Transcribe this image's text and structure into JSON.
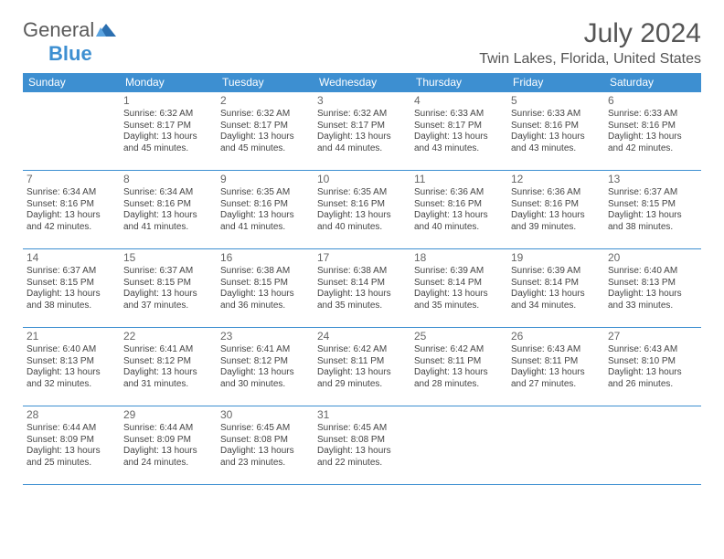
{
  "brand": {
    "part1": "General",
    "part2": "Blue"
  },
  "title": "July 2024",
  "location": "Twin Lakes, Florida, United States",
  "colors": {
    "accent": "#3d8fd1",
    "text": "#444",
    "header_text": "#ffffff",
    "bg": "#ffffff"
  },
  "typography": {
    "title_fontsize": 30,
    "location_fontsize": 16,
    "header_fontsize": 12,
    "cell_fontsize": 10
  },
  "table": {
    "columns": 7,
    "rows": 5
  },
  "weekdays": [
    "Sunday",
    "Monday",
    "Tuesday",
    "Wednesday",
    "Thursday",
    "Friday",
    "Saturday"
  ],
  "days": [
    {
      "n": "",
      "sunrise": "",
      "sunset": "",
      "daylight": ""
    },
    {
      "n": "1",
      "sunrise": "Sunrise: 6:32 AM",
      "sunset": "Sunset: 8:17 PM",
      "daylight": "Daylight: 13 hours and 45 minutes."
    },
    {
      "n": "2",
      "sunrise": "Sunrise: 6:32 AM",
      "sunset": "Sunset: 8:17 PM",
      "daylight": "Daylight: 13 hours and 45 minutes."
    },
    {
      "n": "3",
      "sunrise": "Sunrise: 6:32 AM",
      "sunset": "Sunset: 8:17 PM",
      "daylight": "Daylight: 13 hours and 44 minutes."
    },
    {
      "n": "4",
      "sunrise": "Sunrise: 6:33 AM",
      "sunset": "Sunset: 8:17 PM",
      "daylight": "Daylight: 13 hours and 43 minutes."
    },
    {
      "n": "5",
      "sunrise": "Sunrise: 6:33 AM",
      "sunset": "Sunset: 8:16 PM",
      "daylight": "Daylight: 13 hours and 43 minutes."
    },
    {
      "n": "6",
      "sunrise": "Sunrise: 6:33 AM",
      "sunset": "Sunset: 8:16 PM",
      "daylight": "Daylight: 13 hours and 42 minutes."
    },
    {
      "n": "7",
      "sunrise": "Sunrise: 6:34 AM",
      "sunset": "Sunset: 8:16 PM",
      "daylight": "Daylight: 13 hours and 42 minutes."
    },
    {
      "n": "8",
      "sunrise": "Sunrise: 6:34 AM",
      "sunset": "Sunset: 8:16 PM",
      "daylight": "Daylight: 13 hours and 41 minutes."
    },
    {
      "n": "9",
      "sunrise": "Sunrise: 6:35 AM",
      "sunset": "Sunset: 8:16 PM",
      "daylight": "Daylight: 13 hours and 41 minutes."
    },
    {
      "n": "10",
      "sunrise": "Sunrise: 6:35 AM",
      "sunset": "Sunset: 8:16 PM",
      "daylight": "Daylight: 13 hours and 40 minutes."
    },
    {
      "n": "11",
      "sunrise": "Sunrise: 6:36 AM",
      "sunset": "Sunset: 8:16 PM",
      "daylight": "Daylight: 13 hours and 40 minutes."
    },
    {
      "n": "12",
      "sunrise": "Sunrise: 6:36 AM",
      "sunset": "Sunset: 8:16 PM",
      "daylight": "Daylight: 13 hours and 39 minutes."
    },
    {
      "n": "13",
      "sunrise": "Sunrise: 6:37 AM",
      "sunset": "Sunset: 8:15 PM",
      "daylight": "Daylight: 13 hours and 38 minutes."
    },
    {
      "n": "14",
      "sunrise": "Sunrise: 6:37 AM",
      "sunset": "Sunset: 8:15 PM",
      "daylight": "Daylight: 13 hours and 38 minutes."
    },
    {
      "n": "15",
      "sunrise": "Sunrise: 6:37 AM",
      "sunset": "Sunset: 8:15 PM",
      "daylight": "Daylight: 13 hours and 37 minutes."
    },
    {
      "n": "16",
      "sunrise": "Sunrise: 6:38 AM",
      "sunset": "Sunset: 8:15 PM",
      "daylight": "Daylight: 13 hours and 36 minutes."
    },
    {
      "n": "17",
      "sunrise": "Sunrise: 6:38 AM",
      "sunset": "Sunset: 8:14 PM",
      "daylight": "Daylight: 13 hours and 35 minutes."
    },
    {
      "n": "18",
      "sunrise": "Sunrise: 6:39 AM",
      "sunset": "Sunset: 8:14 PM",
      "daylight": "Daylight: 13 hours and 35 minutes."
    },
    {
      "n": "19",
      "sunrise": "Sunrise: 6:39 AM",
      "sunset": "Sunset: 8:14 PM",
      "daylight": "Daylight: 13 hours and 34 minutes."
    },
    {
      "n": "20",
      "sunrise": "Sunrise: 6:40 AM",
      "sunset": "Sunset: 8:13 PM",
      "daylight": "Daylight: 13 hours and 33 minutes."
    },
    {
      "n": "21",
      "sunrise": "Sunrise: 6:40 AM",
      "sunset": "Sunset: 8:13 PM",
      "daylight": "Daylight: 13 hours and 32 minutes."
    },
    {
      "n": "22",
      "sunrise": "Sunrise: 6:41 AM",
      "sunset": "Sunset: 8:12 PM",
      "daylight": "Daylight: 13 hours and 31 minutes."
    },
    {
      "n": "23",
      "sunrise": "Sunrise: 6:41 AM",
      "sunset": "Sunset: 8:12 PM",
      "daylight": "Daylight: 13 hours and 30 minutes."
    },
    {
      "n": "24",
      "sunrise": "Sunrise: 6:42 AM",
      "sunset": "Sunset: 8:11 PM",
      "daylight": "Daylight: 13 hours and 29 minutes."
    },
    {
      "n": "25",
      "sunrise": "Sunrise: 6:42 AM",
      "sunset": "Sunset: 8:11 PM",
      "daylight": "Daylight: 13 hours and 28 minutes."
    },
    {
      "n": "26",
      "sunrise": "Sunrise: 6:43 AM",
      "sunset": "Sunset: 8:11 PM",
      "daylight": "Daylight: 13 hours and 27 minutes."
    },
    {
      "n": "27",
      "sunrise": "Sunrise: 6:43 AM",
      "sunset": "Sunset: 8:10 PM",
      "daylight": "Daylight: 13 hours and 26 minutes."
    },
    {
      "n": "28",
      "sunrise": "Sunrise: 6:44 AM",
      "sunset": "Sunset: 8:09 PM",
      "daylight": "Daylight: 13 hours and 25 minutes."
    },
    {
      "n": "29",
      "sunrise": "Sunrise: 6:44 AM",
      "sunset": "Sunset: 8:09 PM",
      "daylight": "Daylight: 13 hours and 24 minutes."
    },
    {
      "n": "30",
      "sunrise": "Sunrise: 6:45 AM",
      "sunset": "Sunset: 8:08 PM",
      "daylight": "Daylight: 13 hours and 23 minutes."
    },
    {
      "n": "31",
      "sunrise": "Sunrise: 6:45 AM",
      "sunset": "Sunset: 8:08 PM",
      "daylight": "Daylight: 13 hours and 22 minutes."
    },
    {
      "n": "",
      "sunrise": "",
      "sunset": "",
      "daylight": ""
    },
    {
      "n": "",
      "sunrise": "",
      "sunset": "",
      "daylight": ""
    },
    {
      "n": "",
      "sunrise": "",
      "sunset": "",
      "daylight": ""
    }
  ]
}
